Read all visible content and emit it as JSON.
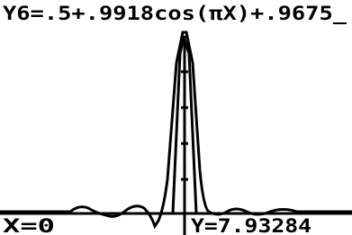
{
  "screen": {
    "equation": "Y6=.5+.9918cos(πX)+.9675_",
    "x_readout": "X=0",
    "y_readout": "Y=7.93284"
  }
}
